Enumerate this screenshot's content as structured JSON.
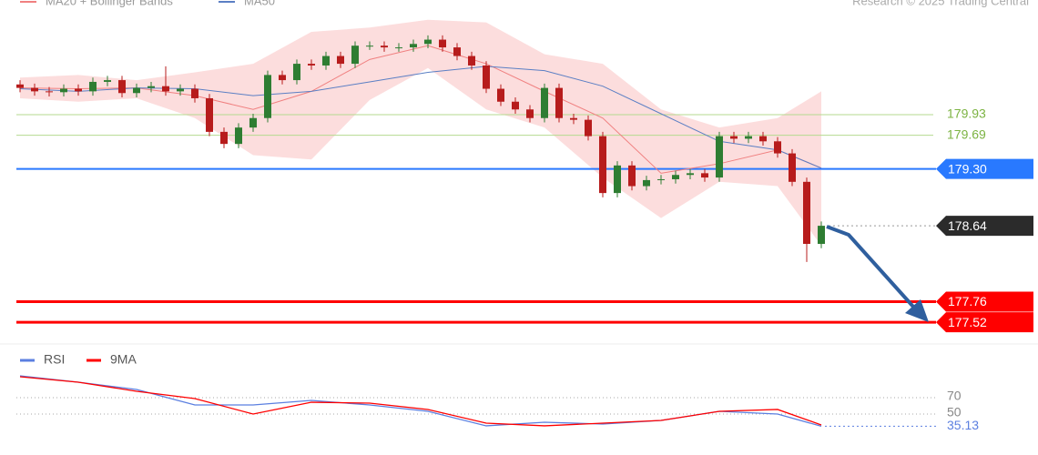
{
  "chart_data": [
    {
      "type": "candlestick",
      "credit": "Research © 2025 Trading Central",
      "ylim": [
        177.3,
        181.26
      ],
      "up_color": "#2e7d32",
      "down_color": "#b71c1c",
      "open": [
        180.28,
        180.24,
        180.2,
        180.19,
        180.23,
        180.2,
        180.31,
        180.33,
        180.18,
        180.24,
        180.26,
        180.2,
        180.23,
        180.12,
        179.73,
        179.59,
        179.78,
        179.89,
        180.39,
        180.33,
        180.52,
        180.5,
        180.61,
        180.52,
        180.73,
        180.73,
        180.71,
        180.71,
        180.75,
        180.8,
        180.71,
        180.61,
        180.5,
        180.23,
        180.08,
        179.99,
        179.89,
        180.24,
        179.89,
        179.87,
        179.68,
        179.02,
        179.34,
        179.1,
        179.17,
        179.18,
        179.23,
        179.25,
        179.2,
        179.68,
        179.65,
        179.68,
        179.62,
        179.48,
        179.15,
        178.43
      ],
      "high": [
        180.33,
        180.29,
        180.25,
        180.28,
        180.28,
        180.36,
        180.38,
        180.38,
        180.29,
        180.31,
        180.49,
        180.28,
        180.28,
        180.17,
        179.78,
        179.83,
        179.94,
        180.44,
        180.44,
        180.57,
        180.57,
        180.66,
        180.66,
        180.78,
        180.78,
        180.78,
        180.76,
        180.8,
        180.85,
        180.85,
        180.76,
        180.66,
        180.55,
        180.28,
        180.13,
        180.04,
        180.29,
        180.29,
        179.94,
        179.92,
        179.73,
        179.39,
        179.39,
        179.22,
        179.23,
        179.28,
        179.3,
        179.3,
        179.73,
        179.73,
        179.73,
        179.73,
        179.67,
        179.53,
        179.2,
        178.69
      ],
      "low": [
        180.19,
        180.15,
        180.14,
        180.14,
        180.15,
        180.15,
        180.26,
        180.13,
        180.13,
        180.19,
        180.15,
        180.15,
        180.07,
        179.68,
        179.54,
        179.54,
        179.73,
        179.84,
        180.28,
        180.28,
        180.45,
        180.45,
        180.47,
        180.47,
        180.68,
        180.66,
        180.66,
        180.66,
        180.7,
        180.66,
        180.56,
        180.45,
        180.18,
        180.03,
        179.94,
        179.84,
        179.84,
        179.84,
        179.82,
        179.63,
        178.97,
        178.97,
        179.05,
        179.05,
        179.12,
        179.13,
        179.18,
        179.15,
        179.15,
        179.6,
        179.6,
        179.57,
        179.43,
        179.1,
        178.22,
        178.38
      ],
      "close": [
        180.24,
        180.2,
        180.19,
        180.23,
        180.2,
        180.31,
        180.33,
        180.18,
        180.24,
        180.26,
        180.2,
        180.23,
        180.12,
        179.73,
        179.59,
        179.78,
        179.89,
        180.39,
        180.33,
        180.52,
        180.5,
        180.61,
        180.52,
        180.73,
        180.73,
        180.71,
        180.71,
        180.75,
        180.8,
        180.71,
        180.61,
        180.5,
        180.23,
        180.08,
        179.99,
        179.89,
        180.24,
        179.89,
        179.87,
        179.68,
        179.02,
        179.34,
        179.1,
        179.17,
        179.18,
        179.23,
        179.25,
        179.2,
        179.68,
        179.65,
        179.68,
        179.62,
        179.48,
        179.15,
        178.43,
        178.64
      ],
      "overlay_x": [
        0,
        4,
        8,
        12,
        16,
        20,
        24,
        28,
        32,
        36,
        40,
        44,
        48,
        52,
        55
      ],
      "band": {
        "color": "#fbd5d5",
        "upper": [
          180.36,
          180.39,
          180.33,
          180.42,
          180.52,
          180.89,
          180.94,
          181.03,
          181.0,
          180.63,
          180.52,
          179.99,
          179.78,
          179.89,
          180.2
        ],
        "lower": [
          180.12,
          180.08,
          180.12,
          179.89,
          179.46,
          179.41,
          180.1,
          180.47,
          179.99,
          179.78,
          179.2,
          178.73,
          179.15,
          179.1,
          178.41
        ]
      },
      "series": [
        {
          "name": "MA20 + Bollinger Bands",
          "color": "#f08080",
          "values": [
            180.24,
            180.23,
            180.24,
            180.15,
            179.99,
            180.2,
            180.57,
            180.73,
            180.52,
            180.2,
            179.89,
            179.25,
            179.36,
            179.52,
            179.31
          ]
        },
        {
          "name": "MA50",
          "color": "#5b7fc4",
          "values": [
            180.23,
            180.2,
            180.24,
            180.23,
            180.15,
            180.2,
            180.31,
            180.42,
            180.49,
            180.44,
            180.26,
            179.94,
            179.62,
            179.52,
            179.31
          ]
        }
      ],
      "levels": [
        {
          "value": 179.93,
          "kind": "line",
          "color": "#7cb342"
        },
        {
          "value": 179.69,
          "kind": "line",
          "color": "#7cb342"
        },
        {
          "value": 179.3,
          "label": "179.30",
          "kind": "tag",
          "color": "#2979ff"
        },
        {
          "value": 178.64,
          "kind": "last",
          "color": "#2b2b2b"
        },
        {
          "value": 177.76,
          "kind": "tag",
          "color": "#ff0000"
        },
        {
          "value": 177.52,
          "kind": "tag",
          "color": "#ff0000"
        }
      ]
    },
    {
      "type": "line",
      "ylim": [
        0,
        100
      ],
      "yticks": [
        50,
        70
      ],
      "grid": true,
      "x": [
        0,
        4,
        8,
        12,
        16,
        20,
        24,
        28,
        32,
        36,
        40,
        44,
        48,
        52,
        55
      ],
      "series": [
        {
          "name": "RSI",
          "color": "#5b7fe0",
          "values": [
            96.7,
            88.9,
            80,
            61.1,
            61.1,
            66.7,
            61.1,
            53.3,
            35.6,
            40,
            37.8,
            42.2,
            53.3,
            50,
            35.13
          ]
        },
        {
          "name": "9MA",
          "color": "#ff0000",
          "values": [
            95.6,
            88.9,
            77.8,
            68.9,
            50,
            64.4,
            63.3,
            55.6,
            38.9,
            35.6,
            38.9,
            42.2,
            53.3,
            55.6,
            36.7
          ]
        }
      ]
    }
  ]
}
